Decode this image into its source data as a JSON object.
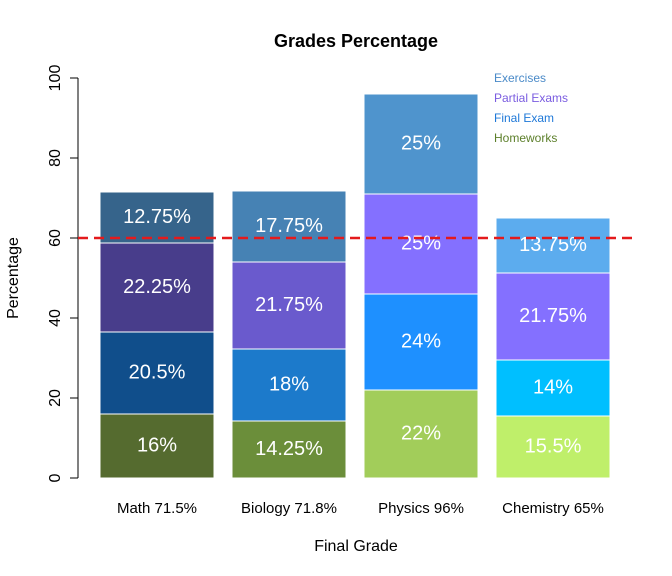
{
  "chart_data": {
    "type": "bar",
    "stacked": true,
    "title": "Grades Percentage",
    "xlabel": "Final Grade",
    "ylabel": "Percentage",
    "ylim": [
      0,
      100
    ],
    "yticks": [
      0,
      20,
      40,
      60,
      80,
      100
    ],
    "grid": false,
    "legend_position": "top-right",
    "categories": [
      "Math 71.5%",
      "Biology 71.8%",
      "Physics 96%",
      "Chemistry 65%"
    ],
    "series": [
      {
        "name": "Homeworks",
        "values": [
          16,
          14.25,
          22,
          15.5
        ],
        "labels": [
          "16%",
          "14.25%",
          "22%",
          "15.5%"
        ],
        "colors": [
          "#556b2f",
          "#6b8e3a",
          "#a2cd5a",
          "#bfef6a"
        ]
      },
      {
        "name": "Final Exam",
        "values": [
          20.5,
          18,
          24,
          14
        ],
        "labels": [
          "20.5%",
          "18%",
          "24%",
          "14%"
        ],
        "colors": [
          "#104e8b",
          "#1c7acb",
          "#1e90ff",
          "#00bfff"
        ]
      },
      {
        "name": "Partial Exams",
        "values": [
          22.25,
          21.75,
          25,
          21.75
        ],
        "labels": [
          "22.25%",
          "21.75%",
          "25%",
          "21.75%"
        ],
        "colors": [
          "#483d8b",
          "#6a5acd",
          "#8470ff",
          "#8470ff"
        ]
      },
      {
        "name": "Exercises",
        "values": [
          12.75,
          17.75,
          25,
          13.75
        ],
        "labels": [
          "12.75%",
          "17.75%",
          "25%",
          "13.75%"
        ],
        "colors": [
          "#36648b",
          "#4682b4",
          "#4f94cd",
          "#5cacee"
        ]
      }
    ],
    "legend": [
      {
        "label": "Exercises",
        "color": "#4a8ac8"
      },
      {
        "label": "Partial Exams",
        "color": "#7a5ce0"
      },
      {
        "label": "Final Exam",
        "color": "#1e78d8"
      },
      {
        "label": "Homeworks",
        "color": "#5c7f2a"
      }
    ],
    "reference_line": {
      "y": 60,
      "color": "#e41a1c",
      "style": "dashed"
    }
  }
}
